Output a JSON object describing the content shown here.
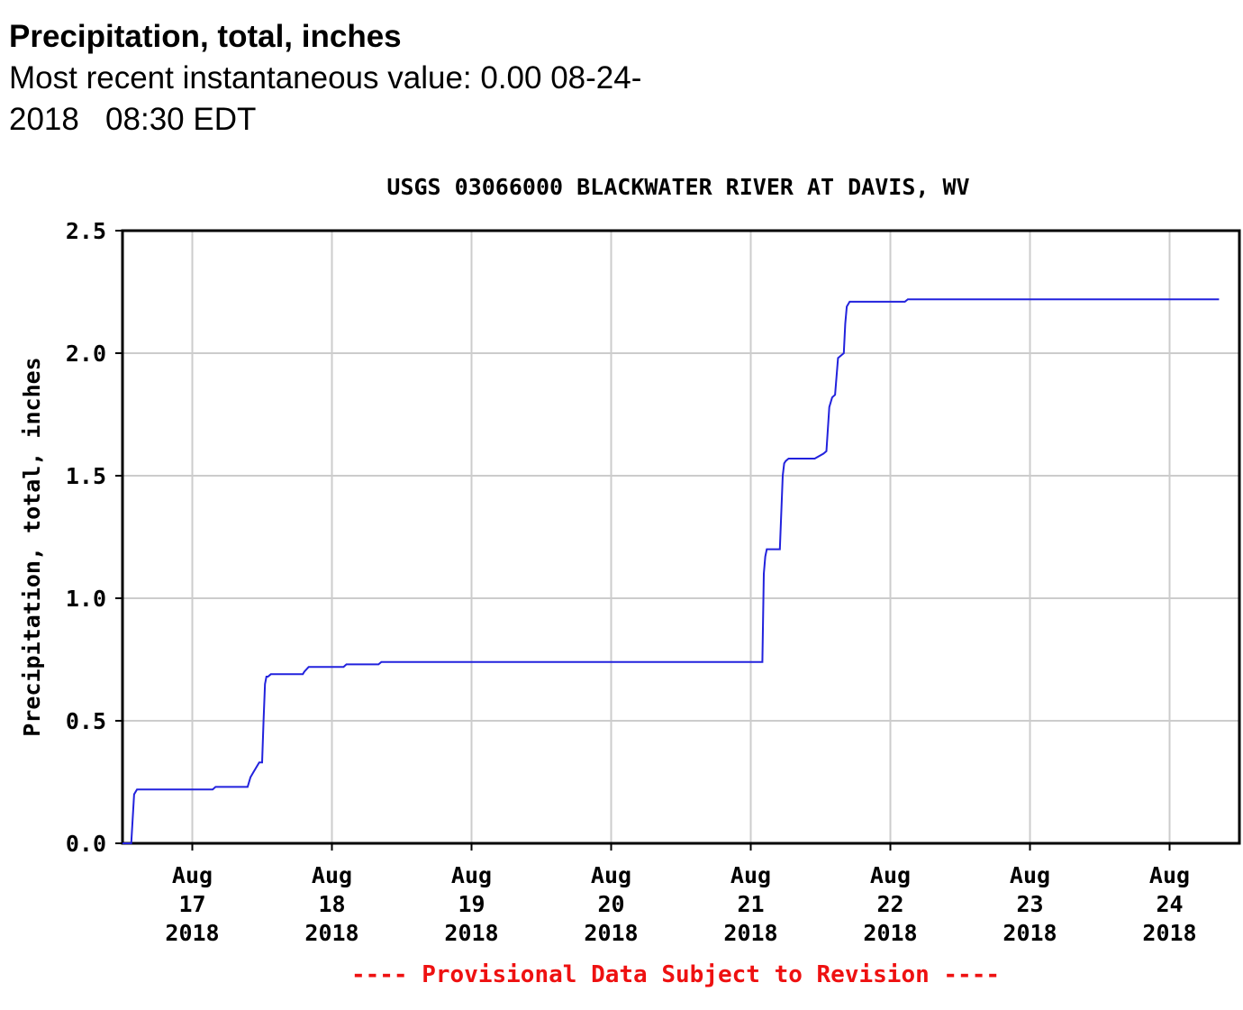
{
  "header": {
    "title": "Precipitation, total, inches",
    "recent_value_line1": "Most recent instantaneous value: 0.00 08-24-",
    "recent_value_line2": "2018   08:30 EDT"
  },
  "chart_data": {
    "type": "line",
    "title": "USGS 03066000 BLACKWATER RIVER AT DAVIS, WV",
    "ylabel": "Precipitation, total, inches",
    "xlabel": "",
    "ylim": [
      0,
      2.5
    ],
    "y_ticks": [
      "0.0",
      "0.5",
      "1.0",
      "1.5",
      "2.0",
      "2.5"
    ],
    "x_range_days": [
      "2018-08-16 12:00",
      "2018-08-24 12:00"
    ],
    "x_ticks": [
      {
        "line1": "Aug",
        "line2": "17",
        "line3": "2018",
        "day": 1
      },
      {
        "line1": "Aug",
        "line2": "18",
        "line3": "2018",
        "day": 2
      },
      {
        "line1": "Aug",
        "line2": "19",
        "line3": "2018",
        "day": 3
      },
      {
        "line1": "Aug",
        "line2": "20",
        "line3": "2018",
        "day": 4
      },
      {
        "line1": "Aug",
        "line2": "21",
        "line3": "2018",
        "day": 5
      },
      {
        "line1": "Aug",
        "line2": "22",
        "line3": "2018",
        "day": 6
      },
      {
        "line1": "Aug",
        "line2": "23",
        "line3": "2018",
        "day": 7
      },
      {
        "line1": "Aug",
        "line2": "24",
        "line3": "2018",
        "day": 8
      }
    ],
    "grid": true,
    "line_color": "#2222dd",
    "footnote": "---- Provisional Data Subject to Revision ----",
    "footnote_color": "#ee1111",
    "series": [
      {
        "x": [
          "2018-08-16 12:00",
          "2018-08-16 13:30",
          "2018-08-16 13:45",
          "2018-08-16 14:00",
          "2018-08-16 14:30",
          "2018-08-17 03:30",
          "2018-08-17 04:00",
          "2018-08-17 09:30",
          "2018-08-17 10:00",
          "2018-08-17 10:30",
          "2018-08-17 11:00",
          "2018-08-17 11:30",
          "2018-08-17 12:00",
          "2018-08-17 12:15",
          "2018-08-17 12:30",
          "2018-08-17 12:45",
          "2018-08-17 13:00",
          "2018-08-17 13:30",
          "2018-08-17 19:00",
          "2018-08-17 19:15",
          "2018-08-17 20:00",
          "2018-08-18 02:00",
          "2018-08-18 02:30",
          "2018-08-18 08:00",
          "2018-08-18 08:30",
          "2018-08-18 12:00",
          "2018-08-18 12:30",
          "2018-08-21 02:00",
          "2018-08-21 02:15",
          "2018-08-21 02:30",
          "2018-08-21 02:45",
          "2018-08-21 05:00",
          "2018-08-21 05:15",
          "2018-08-21 05:30",
          "2018-08-21 05:45",
          "2018-08-21 06:00",
          "2018-08-21 06:30",
          "2018-08-21 10:00",
          "2018-08-21 11:00",
          "2018-08-21 12:30",
          "2018-08-21 13:00",
          "2018-08-21 13:30",
          "2018-08-21 14:00",
          "2018-08-21 14:30",
          "2018-08-21 15:00",
          "2018-08-21 16:00",
          "2018-08-21 16:15",
          "2018-08-21 16:30",
          "2018-08-21 17:00",
          "2018-08-21 17:15",
          "2018-08-21 17:30",
          "2018-08-21 18:00",
          "2018-08-21 18:30",
          "2018-08-22 02:30",
          "2018-08-22 03:00",
          "2018-08-22 03:30",
          "2018-08-24 08:30"
        ],
        "y": [
          0.0,
          0.0,
          0.1,
          0.2,
          0.22,
          0.22,
          0.23,
          0.23,
          0.27,
          0.29,
          0.31,
          0.33,
          0.33,
          0.5,
          0.65,
          0.68,
          0.68,
          0.69,
          0.69,
          0.7,
          0.72,
          0.72,
          0.73,
          0.73,
          0.74,
          0.74,
          0.74,
          0.74,
          1.1,
          1.17,
          1.2,
          1.2,
          1.35,
          1.5,
          1.55,
          1.56,
          1.57,
          1.57,
          1.57,
          1.59,
          1.6,
          1.78,
          1.82,
          1.83,
          1.98,
          2.0,
          2.12,
          2.19,
          2.21,
          2.21,
          2.21,
          2.21,
          2.21,
          2.21,
          2.22,
          2.22,
          2.22
        ]
      }
    ]
  }
}
